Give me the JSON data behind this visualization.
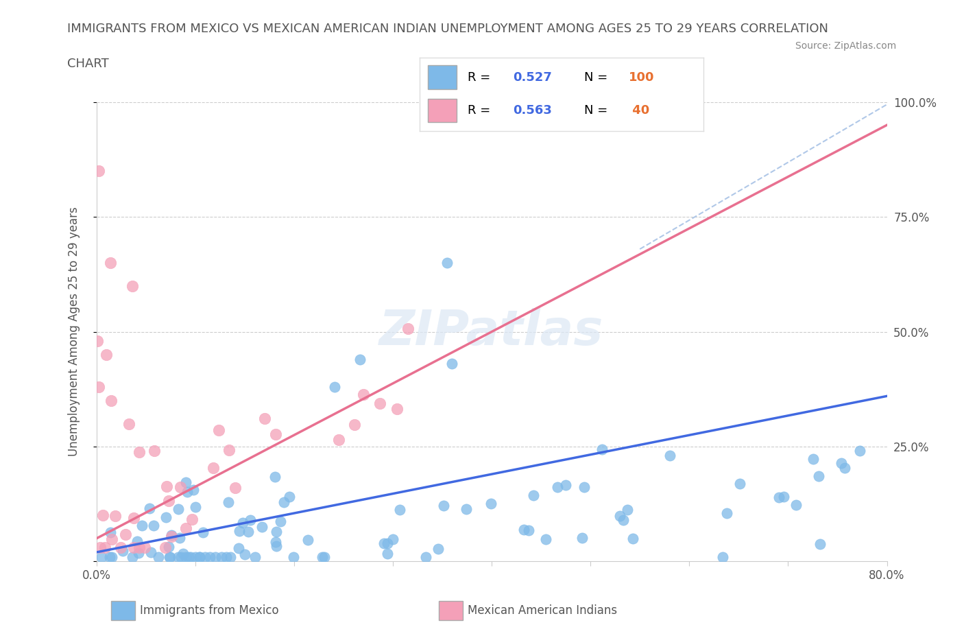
{
  "title_line1": "IMMIGRANTS FROM MEXICO VS MEXICAN AMERICAN INDIAN UNEMPLOYMENT AMONG AGES 25 TO 29 YEARS CORRELATION",
  "title_line2": "CHART",
  "source": "Source: ZipAtlas.com",
  "ylabel": "Unemployment Among Ages 25 to 29 years",
  "xlim": [
    0.0,
    0.8
  ],
  "ylim": [
    0.0,
    1.0
  ],
  "R_blue": 0.527,
  "N_blue": 100,
  "R_pink": 0.563,
  "N_pink": 40,
  "color_blue": "#7EB9E8",
  "color_pink": "#F4A0B8",
  "line_blue": "#4169E1",
  "line_pink": "#E87090",
  "line_blue_dashed": "#B0C8E8",
  "background_color": "#FFFFFF",
  "legend_R_N_color": "#4169E1",
  "legend_N_val_color": "#E87030"
}
